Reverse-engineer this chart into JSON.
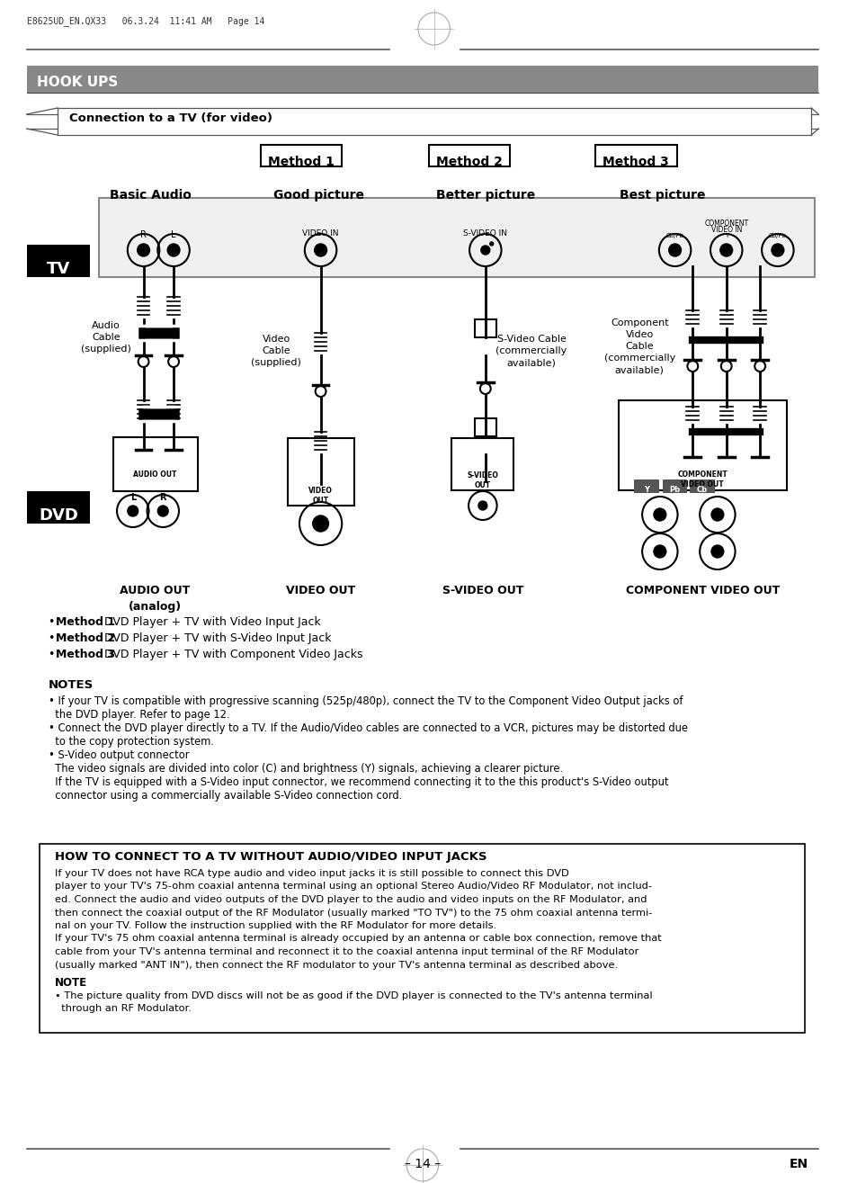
{
  "page_header": "E8625UD_EN.QX33   06.3.24  11:41 AM   Page 14",
  "section_title": "HOOK UPS",
  "subsection_title": "Connection to a TV (for video)",
  "method_labels": [
    "Method 1",
    "Method 2",
    "Method 3"
  ],
  "col_labels": [
    "Basic Audio",
    "Good picture",
    "Better picture",
    "Best picture"
  ],
  "tv_label": "TV",
  "dvd_label": "DVD",
  "method_desc_bold": [
    "Method 1",
    "Method 2",
    "Method 3"
  ],
  "method_desc_rest": [
    "  DVD Player + TV with Video Input Jack",
    "  DVD Player + TV with S-Video Input Jack",
    "  DVD Player + TV with Component Video Jacks"
  ],
  "notes_title": "NOTES",
  "note_lines": [
    "• If your TV is compatible with progressive scanning (525p/480p), connect the TV to the Component Video Output jacks of",
    "  the DVD player. Refer to page 12.",
    "• Connect the DVD player directly to a TV. If the Audio/Video cables are connected to a VCR, pictures may be distorted due",
    "  to the copy protection system.",
    "• S-Video output connector",
    "  The video signals are divided into color (C) and brightness (Y) signals, achieving a clearer picture.",
    "  If the TV is equipped with a S-Video input connector, we recommend connecting it to the this product's S-Video output",
    "  connector using a commercially available S-Video connection cord."
  ],
  "howto_title": "HOW TO CONNECT TO A TV WITHOUT AUDIO/VIDEO INPUT JACKS",
  "howto_lines": [
    "If your TV does not have RCA type audio and video input jacks it is still possible to connect this DVD",
    "player to your TV's 75-ohm coaxial antenna terminal using an optional Stereo Audio/Video RF Modulator, not includ-",
    "ed. Connect the audio and video outputs of the DVD player to the audio and video inputs on the RF Modulator, and",
    "then connect the coaxial output of the RF Modulator (usually marked \"TO TV\") to the 75 ohm coaxial antenna termi-",
    "nal on your TV. Follow the instruction supplied with the RF Modulator for more details.",
    "If your TV's 75 ohm coaxial antenna terminal is already occupied by an antenna or cable box connection, remove that",
    "cable from your TV's antenna terminal and reconnect it to the coaxial antenna input terminal of the RF Modulator",
    "(usually marked \"ANT IN\"), then connect the RF modulator to your TV's antenna terminal as described above."
  ],
  "howto_note_title": "NOTE",
  "howto_note_lines": [
    "• The picture quality from DVD discs will not be as good if the DVD player is connected to the TV's antenna terminal",
    "  through an RF Modulator."
  ],
  "page_number": "– 14 –",
  "lang_label": "EN",
  "bg_color": "#ffffff",
  "header_bg": "#888888"
}
